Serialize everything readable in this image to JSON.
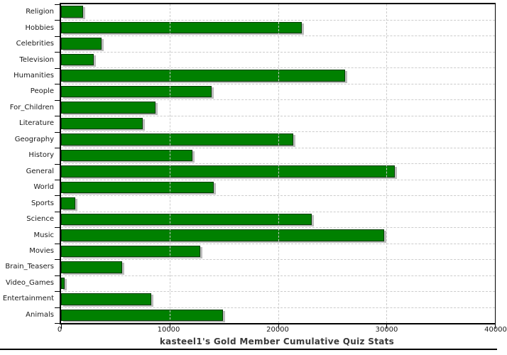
{
  "chart_data": {
    "type": "bar",
    "orientation": "horizontal",
    "title": "kasteel1's Gold Member Cumulative Quiz Stats",
    "categories": [
      "Religion",
      "Hobbies",
      "Celebrities",
      "Television",
      "Humanities",
      "People",
      "For_Children",
      "Literature",
      "Geography",
      "History",
      "General",
      "World",
      "Sports",
      "Science",
      "Music",
      "Movies",
      "Brain_Teasers",
      "Video_Games",
      "Entertainment",
      "Animals"
    ],
    "values": [
      2000,
      22200,
      3700,
      3000,
      26200,
      13900,
      8700,
      7500,
      21400,
      12100,
      30800,
      14100,
      1300,
      23100,
      29800,
      12800,
      5600,
      330,
      8300,
      14900
    ],
    "xlim": [
      0,
      40000
    ],
    "xticks": [
      0,
      10000,
      20000,
      30000,
      40000
    ],
    "xtick_labels": [
      "0",
      "10000",
      "20000",
      "30000",
      "40000"
    ],
    "grid": true,
    "legend": "none",
    "bar_color": "#008000",
    "bar_border_color": "#053b05",
    "shadow_color": "#bcbcbc",
    "grid_color": "#cccccc",
    "axis_color": "#000000",
    "title_color": "#3b3b3b"
  }
}
